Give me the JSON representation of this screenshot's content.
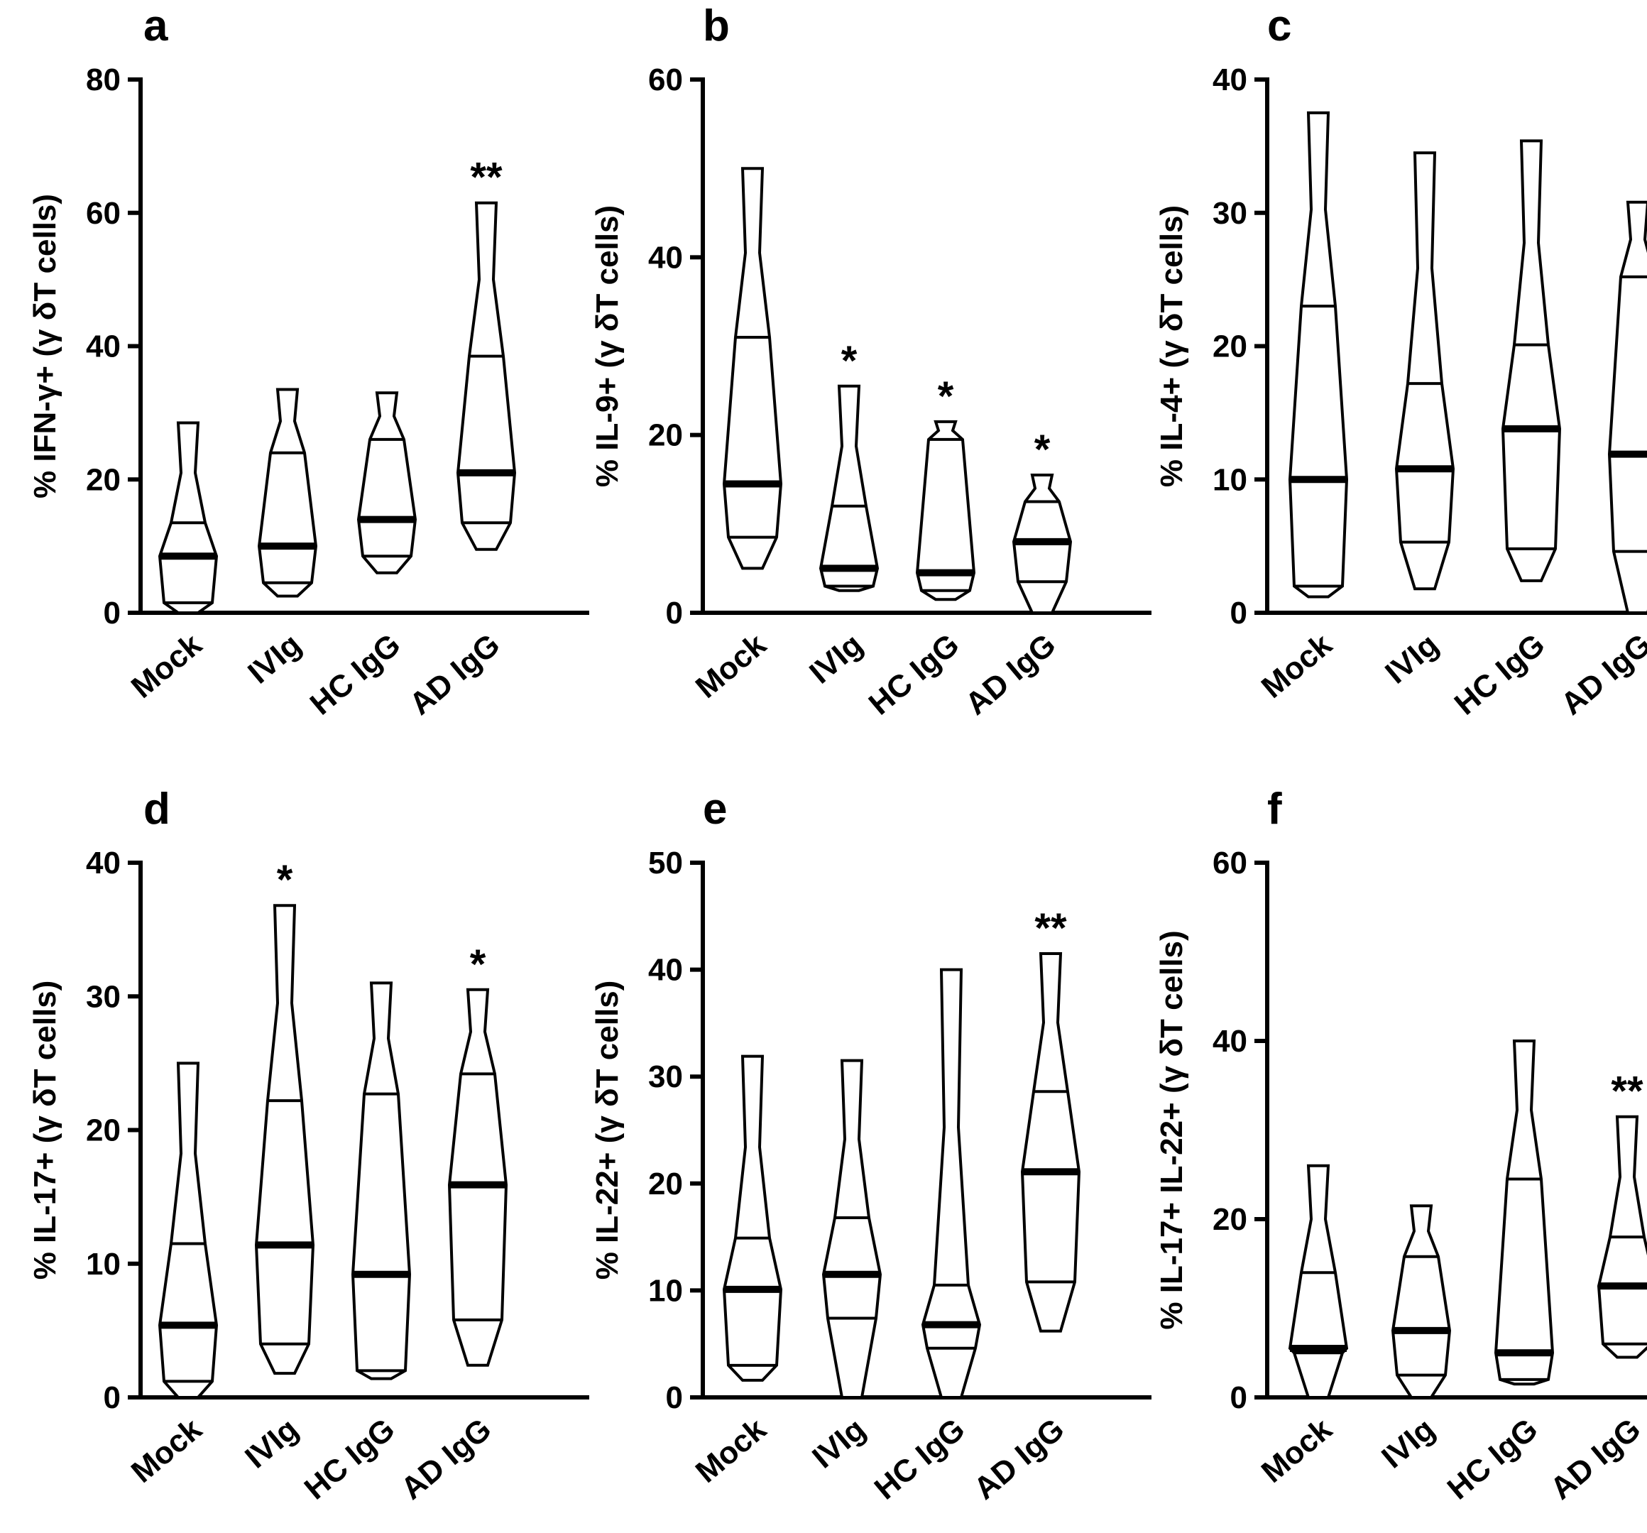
{
  "chart_data": [
    {
      "type": "violin",
      "panel": "a",
      "ylabel": "% IFN-γ+ (γ δT cells)",
      "ylim": [
        0,
        80
      ],
      "yticks": [
        "0",
        "20",
        "40",
        "60",
        "80"
      ],
      "categories": [
        "Mock",
        "IVIg",
        "HC IgG",
        "AD IgG"
      ],
      "groups": [
        {
          "name": "Mock",
          "min": 0,
          "q1": 1.5,
          "median": 8.5,
          "q3": 13.5,
          "max": 28.5,
          "sig": ""
        },
        {
          "name": "IVIg",
          "min": 2.5,
          "q1": 4.5,
          "median": 10,
          "q3": 24,
          "max": 33.5,
          "sig": ""
        },
        {
          "name": "HC IgG",
          "min": 6,
          "q1": 8.5,
          "median": 14,
          "q3": 26,
          "max": 33,
          "sig": ""
        },
        {
          "name": "AD IgG",
          "min": 9.5,
          "q1": 13.5,
          "median": 21,
          "q3": 38.5,
          "max": 61.5,
          "sig": "**"
        }
      ]
    },
    {
      "type": "violin",
      "panel": "b",
      "ylabel": "% IL-9+ (γ δT cells)",
      "ylim": [
        0,
        60
      ],
      "yticks": [
        "0",
        "20",
        "40",
        "60"
      ],
      "categories": [
        "Mock",
        "IVIg",
        "HC IgG",
        "AD IgG"
      ],
      "groups": [
        {
          "name": "Mock",
          "min": 5,
          "q1": 8.5,
          "median": 14.5,
          "q3": 31,
          "max": 50,
          "sig": ""
        },
        {
          "name": "IVIg",
          "min": 2.5,
          "q1": 3,
          "median": 5,
          "q3": 12,
          "max": 25.5,
          "sig": "*"
        },
        {
          "name": "HC IgG",
          "min": 1.5,
          "q1": 2.5,
          "median": 4.5,
          "q3": 19.5,
          "max": 21.5,
          "sig": "*"
        },
        {
          "name": "AD IgG",
          "min": 0,
          "q1": 3.5,
          "median": 8,
          "q3": 12.5,
          "max": 15.5,
          "sig": "*"
        }
      ]
    },
    {
      "type": "violin",
      "panel": "c",
      "ylabel": "% IL-4+ (γ δT cells)",
      "ylim": [
        0,
        40
      ],
      "yticks": [
        "0",
        "10",
        "20",
        "30",
        "40"
      ],
      "categories": [
        "Mock",
        "IVIg",
        "HC IgG",
        "AD IgG"
      ],
      "groups": [
        {
          "name": "Mock",
          "min": 1.2,
          "q1": 2,
          "median": 10,
          "q3": 23,
          "max": 37.5,
          "sig": ""
        },
        {
          "name": "IVIg",
          "min": 1.8,
          "q1": 5.3,
          "median": 10.8,
          "q3": 17.2,
          "max": 34.5,
          "sig": ""
        },
        {
          "name": "HC IgG",
          "min": 2.4,
          "q1": 4.8,
          "median": 13.8,
          "q3": 20.1,
          "max": 35.4,
          "sig": ""
        },
        {
          "name": "AD IgG",
          "min": 0,
          "q1": 4.6,
          "median": 11.9,
          "q3": 25.2,
          "max": 30.8,
          "sig": ""
        }
      ]
    },
    {
      "type": "violin",
      "panel": "d",
      "ylabel": "% IL-17+ (γ δT cells)",
      "ylim": [
        0,
        40
      ],
      "yticks": [
        "0",
        "10",
        "20",
        "30",
        "40"
      ],
      "categories": [
        "Mock",
        "IVIg",
        "HC IgG",
        "AD IgG"
      ],
      "groups": [
        {
          "name": "Mock",
          "min": 0,
          "q1": 1.2,
          "median": 5.4,
          "q3": 11.5,
          "max": 25,
          "sig": ""
        },
        {
          "name": "IVIg",
          "min": 1.8,
          "q1": 4,
          "median": 11.4,
          "q3": 22.2,
          "max": 36.8,
          "sig": "*"
        },
        {
          "name": "HC IgG",
          "min": 1.4,
          "q1": 2,
          "median": 9.2,
          "q3": 22.7,
          "max": 31,
          "sig": ""
        },
        {
          "name": "AD IgG",
          "min": 2.4,
          "q1": 5.8,
          "median": 15.9,
          "q3": 24.2,
          "max": 30.5,
          "sig": "*"
        }
      ]
    },
    {
      "type": "violin",
      "panel": "e",
      "ylabel": "% IL-22+ (γ δT cells)",
      "ylim": [
        0,
        50
      ],
      "yticks": [
        "0",
        "10",
        "20",
        "30",
        "40",
        "50"
      ],
      "categories": [
        "Mock",
        "IVIg",
        "HC IgG",
        "AD IgG"
      ],
      "groups": [
        {
          "name": "Mock",
          "min": 1.6,
          "q1": 3,
          "median": 10.1,
          "q3": 14.9,
          "max": 31.9,
          "sig": ""
        },
        {
          "name": "IVIg",
          "min": 0,
          "q1": 7.4,
          "median": 11.5,
          "q3": 16.8,
          "max": 31.5,
          "sig": ""
        },
        {
          "name": "HC IgG",
          "min": 0,
          "q1": 4.6,
          "median": 6.8,
          "q3": 10.5,
          "max": 40,
          "sig": ""
        },
        {
          "name": "AD IgG",
          "min": 6.2,
          "q1": 10.8,
          "median": 21.1,
          "q3": 28.6,
          "max": 41.5,
          "sig": "**"
        }
      ]
    },
    {
      "type": "violin",
      "panel": "f",
      "ylabel": "% IL-17+ IL-22+ (γ δT cells)",
      "ylim": [
        0,
        60
      ],
      "yticks": [
        "0",
        "20",
        "40",
        "60"
      ],
      "categories": [
        "Mock",
        "IVIg",
        "HC IgG",
        "AD IgG"
      ],
      "groups": [
        {
          "name": "Mock",
          "min": 0,
          "q1": 5,
          "median": 5.5,
          "q3": 14,
          "max": 26,
          "sig": ""
        },
        {
          "name": "IVIg",
          "min": 0,
          "q1": 2.5,
          "median": 7.5,
          "q3": 15.8,
          "max": 21.5,
          "sig": ""
        },
        {
          "name": "HC IgG",
          "min": 1.5,
          "q1": 2,
          "median": 5,
          "q3": 24.5,
          "max": 40,
          "sig": ""
        },
        {
          "name": "AD IgG",
          "min": 4.5,
          "q1": 6,
          "median": 12.5,
          "q3": 18,
          "max": 31.5,
          "sig": "**"
        }
      ]
    }
  ]
}
